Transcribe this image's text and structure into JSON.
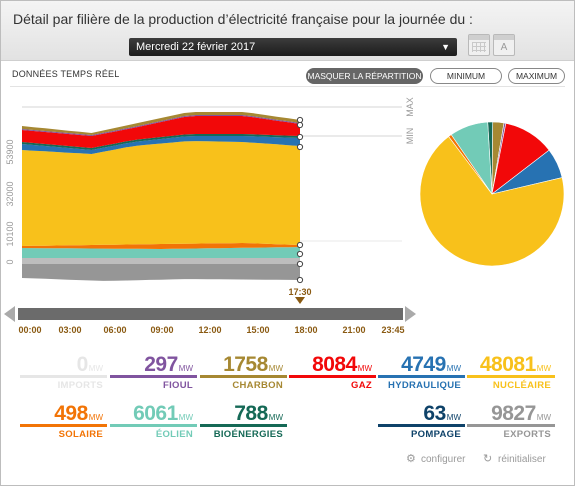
{
  "header": {
    "title": "Détail par filière de la production d’électricité française pour la journée du :",
    "date": "Mercredi 22 février 2017"
  },
  "toolbar": {
    "realtime_label": "DONNÉES TEMPS RÉEL",
    "mask_button": "MASQUER LA RÉPARTITION",
    "min_button": "MINIMUM",
    "max_button": "MAXIMUM"
  },
  "chart_data": [
    {
      "type": "area",
      "y_ticks": [
        "0",
        "10100",
        "32000",
        "53900"
      ],
      "ref_labels": [
        "MAX",
        "MIN"
      ],
      "x_ticks": [
        "00:00",
        "03:00",
        "06:00",
        "09:00",
        "12:00",
        "15:00",
        "18:00",
        "21:00",
        "23:45"
      ],
      "cursor_label": "17:30",
      "series_order": [
        "nucleaire",
        "solaire",
        "eolien",
        "bioenergies",
        "charbon",
        "fioul",
        "gaz",
        "hydraulique"
      ]
    },
    {
      "type": "pie",
      "slices": [
        {
          "key": "nucleaire",
          "value": 48081
        },
        {
          "key": "hydraulique",
          "value": 4749
        },
        {
          "key": "gaz",
          "value": 8084
        },
        {
          "key": "fioul",
          "value": 297
        },
        {
          "key": "charbon",
          "value": 1758
        },
        {
          "key": "bioenergies",
          "value": 788
        },
        {
          "key": "eolien",
          "value": 6061
        },
        {
          "key": "solaire",
          "value": 498
        }
      ]
    }
  ],
  "sources": {
    "imports": {
      "value": "0",
      "unit": "MW",
      "label": "IMPORTS",
      "color": "#e6e6e6"
    },
    "fioul": {
      "value": "297",
      "unit": "MW",
      "label": "FIOUL",
      "color": "#80549f"
    },
    "charbon": {
      "value": "1758",
      "unit": "MW",
      "label": "CHARBON",
      "color": "#a68832"
    },
    "gaz": {
      "value": "8084",
      "unit": "MW",
      "label": "GAZ",
      "color": "#f20809"
    },
    "hydraulique": {
      "value": "4749",
      "unit": "MW",
      "label": "HYDRAULIQUE",
      "color": "#2772b2"
    },
    "nucleaire": {
      "value": "48081",
      "unit": "MW",
      "label": "NUCLÉAIRE",
      "color": "#f8c11b"
    },
    "solaire": {
      "value": "498",
      "unit": "MW",
      "label": "SOLAIRE",
      "color": "#f27406"
    },
    "eolien": {
      "value": "6061",
      "unit": "MW",
      "label": "ÉOLIEN",
      "color": "#72cbb7"
    },
    "bioenergies": {
      "value": "788",
      "unit": "MW",
      "label": "BIOÉNERGIES",
      "color": "#156956"
    },
    "pompage": {
      "value": "63",
      "unit": "MW",
      "label": "POMPAGE",
      "color": "#0e4269"
    },
    "exports": {
      "value": "9827",
      "unit": "MW",
      "label": "EXPORTS",
      "color": "#969696"
    }
  },
  "footer": {
    "configure": "configurer",
    "reset": "réinitialiser"
  }
}
